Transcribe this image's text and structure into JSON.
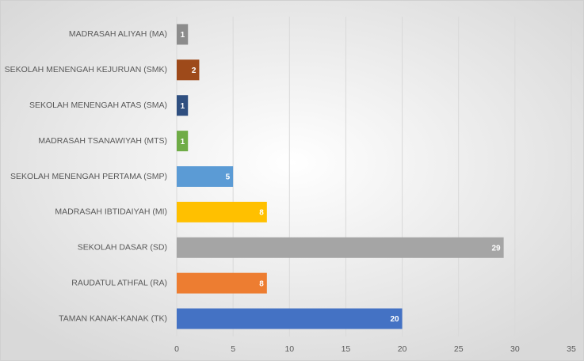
{
  "chart_data": {
    "type": "barh",
    "categories": [
      "MADRASAH ALIYAH (MA)",
      "SEKOLAH MENENGAH KEJURUAN (SMK)",
      "SEKOLAH MENENGAH ATAS (SMA)",
      "MADRASAH TSANAWIYAH (MTS)",
      "SEKOLAH MENENGAH PERTAMA (SMP)",
      "MADRASAH IBTIDAIYAH (MI)",
      "SEKOLAH DASAR (SD)",
      "RAUDATUL ATHFAL (RA)",
      "TAMAN KANAK-KANAK (TK)"
    ],
    "values": [
      1,
      2,
      1,
      1,
      5,
      8,
      29,
      8,
      20
    ],
    "colors": [
      "#8c8c8c",
      "#9e4a1a",
      "#2f4f80",
      "#6fac46",
      "#5b9bd5",
      "#ffc000",
      "#a5a5a5",
      "#ed7d31",
      "#4472c4"
    ],
    "xlim": [
      0,
      35
    ],
    "xticks": [
      0,
      5,
      10,
      15,
      20,
      25,
      30,
      35
    ],
    "grid": true
  }
}
